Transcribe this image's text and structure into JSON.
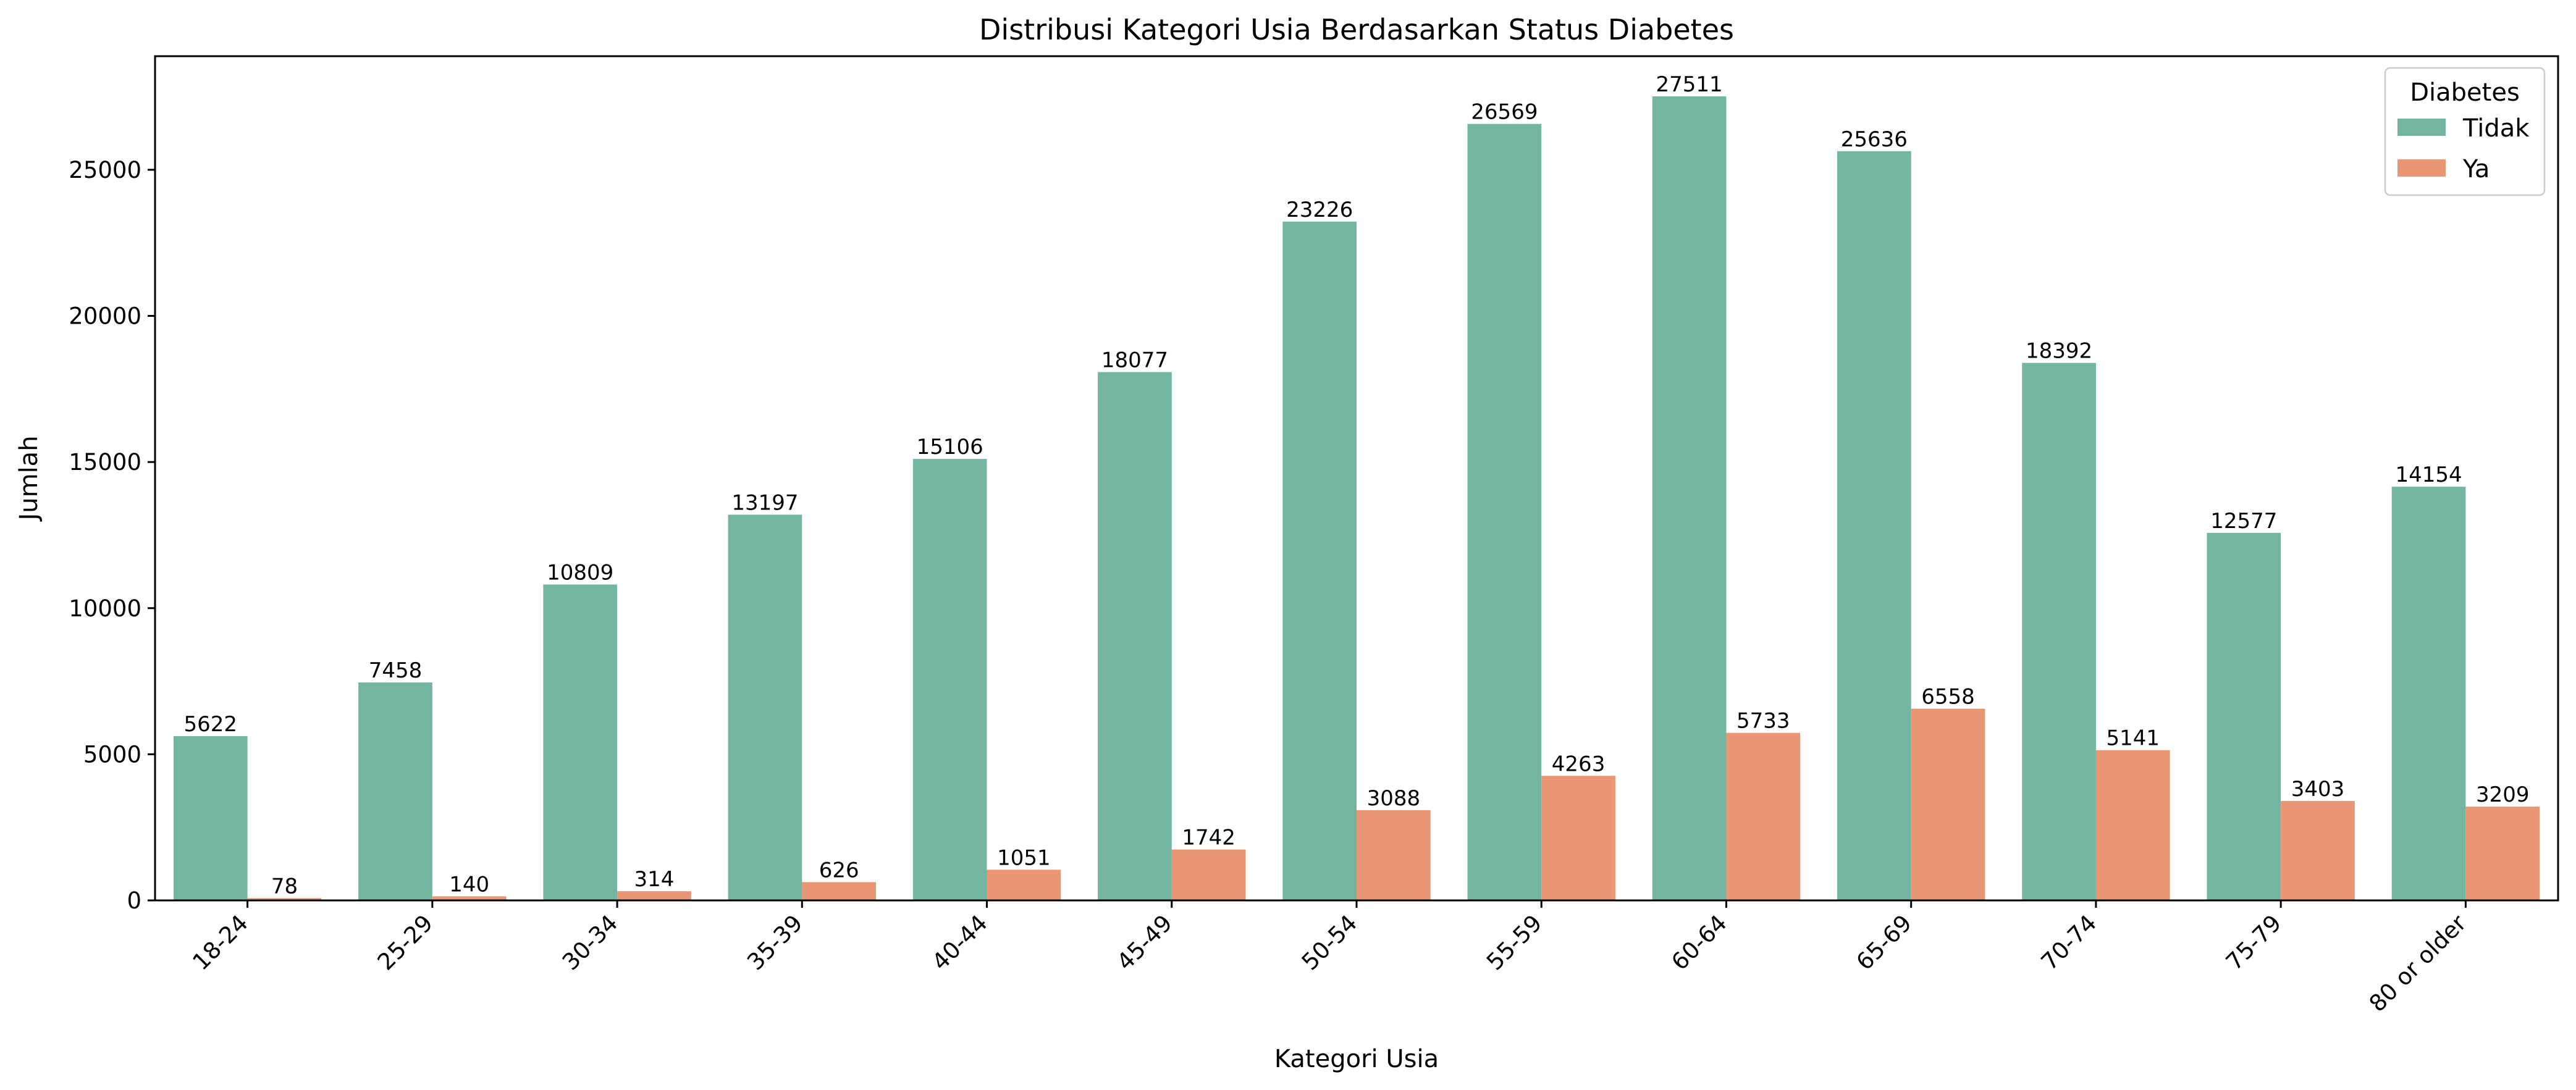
{
  "chart_data": {
    "type": "bar",
    "title": "Distribusi Kategori Usia Berdasarkan Status Diabetes",
    "xlabel": "Kategori Usia",
    "ylabel": "Jumlah",
    "categories": [
      "18-24",
      "25-29",
      "30-34",
      "35-39",
      "40-44",
      "45-49",
      "50-54",
      "55-59",
      "60-64",
      "65-69",
      "70-74",
      "75-79",
      "80 or older"
    ],
    "series": [
      {
        "name": "Tidak",
        "color": "#72b6a1",
        "values": [
          5622,
          7458,
          10809,
          13197,
          15106,
          18077,
          23226,
          26569,
          27511,
          25636,
          18392,
          12577,
          14154
        ]
      },
      {
        "name": "Ya",
        "color": "#e99675",
        "values": [
          78,
          140,
          314,
          626,
          1051,
          1742,
          3088,
          4263,
          5733,
          6558,
          5141,
          3403,
          3209
        ]
      }
    ],
    "ylim": [
      0,
      28886
    ],
    "yticks": [
      0,
      5000,
      10000,
      15000,
      20000,
      25000
    ],
    "legend": {
      "title": "Diabetes",
      "placement": "top-right"
    },
    "grid": false
  }
}
